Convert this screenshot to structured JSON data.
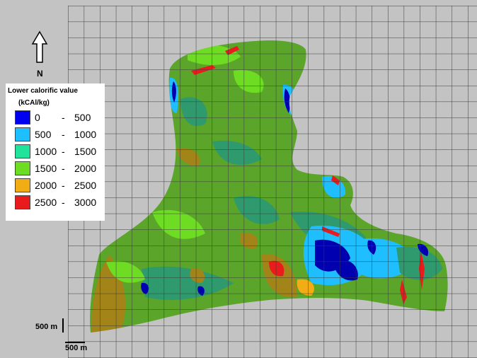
{
  "north_label": "N",
  "legend": {
    "title": "Lower calorific value",
    "unit": "(kCAl/kg)",
    "classes": [
      {
        "low": "0",
        "high": "500",
        "color": "#0000f0"
      },
      {
        "low": "500",
        "high": "1000",
        "color": "#1fbfff"
      },
      {
        "low": "1000",
        "high": "1500",
        "color": "#22e39b"
      },
      {
        "low": "1500",
        "high": "2000",
        "color": "#6ddc22"
      },
      {
        "low": "2000",
        "high": "2500",
        "color": "#f2ad15"
      },
      {
        "low": "2500",
        "high": "3000",
        "color": "#e81c1c"
      }
    ],
    "separator": "-"
  },
  "scale_vertical_label": "500 m",
  "scale_horizontal_label": "500 m",
  "colors": {
    "background": "#c3c3c3",
    "grid": "#3a3a3a",
    "base_fill": "#5aa52a",
    "dark_blue": "#0000b0",
    "teal": "#2e9a6e",
    "brown": "#a28418"
  }
}
